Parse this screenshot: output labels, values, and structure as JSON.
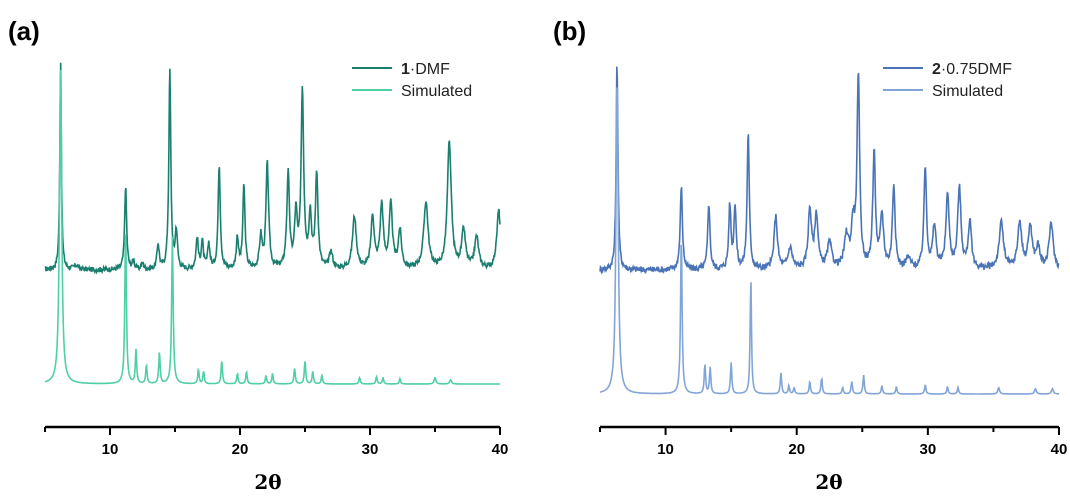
{
  "panels": [
    {
      "letter": "(a)",
      "legend": [
        {
          "bold": "1",
          "rest": "·DMF",
          "color": "#1a7f6e"
        },
        {
          "bold": "",
          "rest": "Simulated",
          "color": "#4fcfa6"
        }
      ]
    },
    {
      "letter": "(b)",
      "legend": [
        {
          "bold": "2",
          "rest": "·0.75DMF",
          "color": "#4a74b5"
        },
        {
          "bold": "",
          "rest": "Simulated",
          "color": "#82a5d8"
        }
      ]
    }
  ],
  "chart_data": [
    {
      "type": "line",
      "panel": "(a)",
      "xlabel": "2θ",
      "ylabel": "",
      "xlim": [
        5,
        40
      ],
      "xticks": [
        10,
        20,
        30,
        40
      ],
      "ticks_visible": [
        false
      ],
      "series": [
        {
          "name": "1·DMF",
          "color": "#1a7f6e",
          "baseline": 0.53,
          "noise": 0.012,
          "peaks": [
            [
              6.2,
              1.0,
              0.07
            ],
            [
              7.4,
              0.02,
              0.2
            ],
            [
              11.2,
              0.4,
              0.09
            ],
            [
              11.8,
              0.04,
              0.1
            ],
            [
              12.5,
              0.03,
              0.1
            ],
            [
              13.7,
              0.12,
              0.1
            ],
            [
              14.6,
              0.95,
              0.09
            ],
            [
              15.1,
              0.18,
              0.1
            ],
            [
              16.7,
              0.15,
              0.1
            ],
            [
              17.1,
              0.13,
              0.1
            ],
            [
              17.6,
              0.12,
              0.1
            ],
            [
              18.4,
              0.5,
              0.1
            ],
            [
              19.8,
              0.15,
              0.1
            ],
            [
              20.3,
              0.4,
              0.1
            ],
            [
              21.6,
              0.15,
              0.12
            ],
            [
              22.1,
              0.5,
              0.12
            ],
            [
              23.7,
              0.45,
              0.12
            ],
            [
              24.3,
              0.25,
              0.12
            ],
            [
              24.8,
              0.85,
              0.12
            ],
            [
              25.4,
              0.25,
              0.12
            ],
            [
              25.9,
              0.45,
              0.12
            ],
            [
              27.0,
              0.08,
              0.15
            ],
            [
              28.8,
              0.25,
              0.18
            ],
            [
              30.2,
              0.25,
              0.15
            ],
            [
              30.9,
              0.3,
              0.15
            ],
            [
              31.6,
              0.3,
              0.15
            ],
            [
              32.3,
              0.18,
              0.15
            ],
            [
              34.3,
              0.32,
              0.2
            ],
            [
              36.1,
              0.6,
              0.18
            ],
            [
              37.2,
              0.18,
              0.18
            ],
            [
              38.2,
              0.15,
              0.18
            ],
            [
              39.9,
              0.28,
              0.18
            ]
          ]
        },
        {
          "name": "Simulated",
          "color": "#4fcfa6",
          "baseline": 0.0,
          "noise": 0.0,
          "peaks": [
            [
              6.2,
              3.0,
              0.1
            ],
            [
              11.2,
              1.5,
              0.07
            ],
            [
              12.0,
              0.32,
              0.06
            ],
            [
              12.8,
              0.18,
              0.06
            ],
            [
              13.8,
              0.3,
              0.06
            ],
            [
              14.8,
              1.4,
              0.07
            ],
            [
              16.8,
              0.14,
              0.06
            ],
            [
              17.2,
              0.12,
              0.06
            ],
            [
              18.6,
              0.22,
              0.06
            ],
            [
              19.8,
              0.1,
              0.06
            ],
            [
              20.5,
              0.12,
              0.06
            ],
            [
              22.0,
              0.08,
              0.06
            ],
            [
              22.5,
              0.1,
              0.06
            ],
            [
              24.2,
              0.15,
              0.06
            ],
            [
              25.0,
              0.22,
              0.06
            ],
            [
              25.6,
              0.12,
              0.06
            ],
            [
              26.3,
              0.08,
              0.06
            ],
            [
              29.2,
              0.06,
              0.06
            ],
            [
              30.5,
              0.07,
              0.06
            ],
            [
              31.0,
              0.06,
              0.06
            ],
            [
              32.3,
              0.05,
              0.06
            ],
            [
              35.0,
              0.06,
              0.08
            ],
            [
              36.2,
              0.04,
              0.08
            ]
          ]
        }
      ]
    },
    {
      "type": "line",
      "panel": "(b)",
      "xlabel": "2θ",
      "ylabel": "",
      "xlim": [
        5,
        40
      ],
      "xticks": [
        10,
        20,
        30,
        40
      ],
      "series": [
        {
          "name": "2·0.75DMF",
          "color": "#4a74b5",
          "baseline": 0.53,
          "noise": 0.015,
          "peaks": [
            [
              6.3,
              1.0,
              0.08
            ],
            [
              11.2,
              0.4,
              0.1
            ],
            [
              13.3,
              0.32,
              0.1
            ],
            [
              14.9,
              0.3,
              0.1
            ],
            [
              15.3,
              0.3,
              0.1
            ],
            [
              16.3,
              0.65,
              0.1
            ],
            [
              18.4,
              0.25,
              0.15
            ],
            [
              19.5,
              0.1,
              0.2
            ],
            [
              21.0,
              0.28,
              0.15
            ],
            [
              21.5,
              0.25,
              0.15
            ],
            [
              22.5,
              0.12,
              0.2
            ],
            [
              23.8,
              0.15,
              0.2
            ],
            [
              24.3,
              0.2,
              0.15
            ],
            [
              24.7,
              0.9,
              0.12
            ],
            [
              25.9,
              0.55,
              0.12
            ],
            [
              26.5,
              0.25,
              0.15
            ],
            [
              27.4,
              0.4,
              0.12
            ],
            [
              28.5,
              0.05,
              0.2
            ],
            [
              29.8,
              0.48,
              0.12
            ],
            [
              30.5,
              0.2,
              0.15
            ],
            [
              31.5,
              0.35,
              0.15
            ],
            [
              32.4,
              0.38,
              0.15
            ],
            [
              33.2,
              0.22,
              0.15
            ],
            [
              35.6,
              0.22,
              0.2
            ],
            [
              37.0,
              0.22,
              0.18
            ],
            [
              37.8,
              0.2,
              0.18
            ],
            [
              38.4,
              0.1,
              0.18
            ],
            [
              39.4,
              0.22,
              0.18
            ]
          ]
        },
        {
          "name": "Simulated",
          "color": "#82a5d8",
          "baseline": 0.0,
          "noise": 0.0,
          "peaks": [
            [
              6.3,
              3.0,
              0.1
            ],
            [
              11.2,
              1.5,
              0.07
            ],
            [
              13.0,
              0.28,
              0.06
            ],
            [
              13.4,
              0.25,
              0.06
            ],
            [
              15.0,
              0.3,
              0.06
            ],
            [
              16.5,
              1.1,
              0.06
            ],
            [
              18.8,
              0.2,
              0.06
            ],
            [
              19.4,
              0.08,
              0.06
            ],
            [
              19.8,
              0.06,
              0.06
            ],
            [
              21.0,
              0.12,
              0.06
            ],
            [
              21.9,
              0.15,
              0.06
            ],
            [
              23.5,
              0.06,
              0.06
            ],
            [
              24.2,
              0.12,
              0.06
            ],
            [
              25.1,
              0.18,
              0.06
            ],
            [
              26.5,
              0.08,
              0.06
            ],
            [
              27.6,
              0.07,
              0.06
            ],
            [
              29.8,
              0.09,
              0.06
            ],
            [
              31.5,
              0.07,
              0.06
            ],
            [
              32.3,
              0.06,
              0.06
            ],
            [
              35.4,
              0.06,
              0.08
            ],
            [
              38.2,
              0.05,
              0.08
            ],
            [
              39.5,
              0.05,
              0.08
            ]
          ]
        }
      ]
    }
  ]
}
